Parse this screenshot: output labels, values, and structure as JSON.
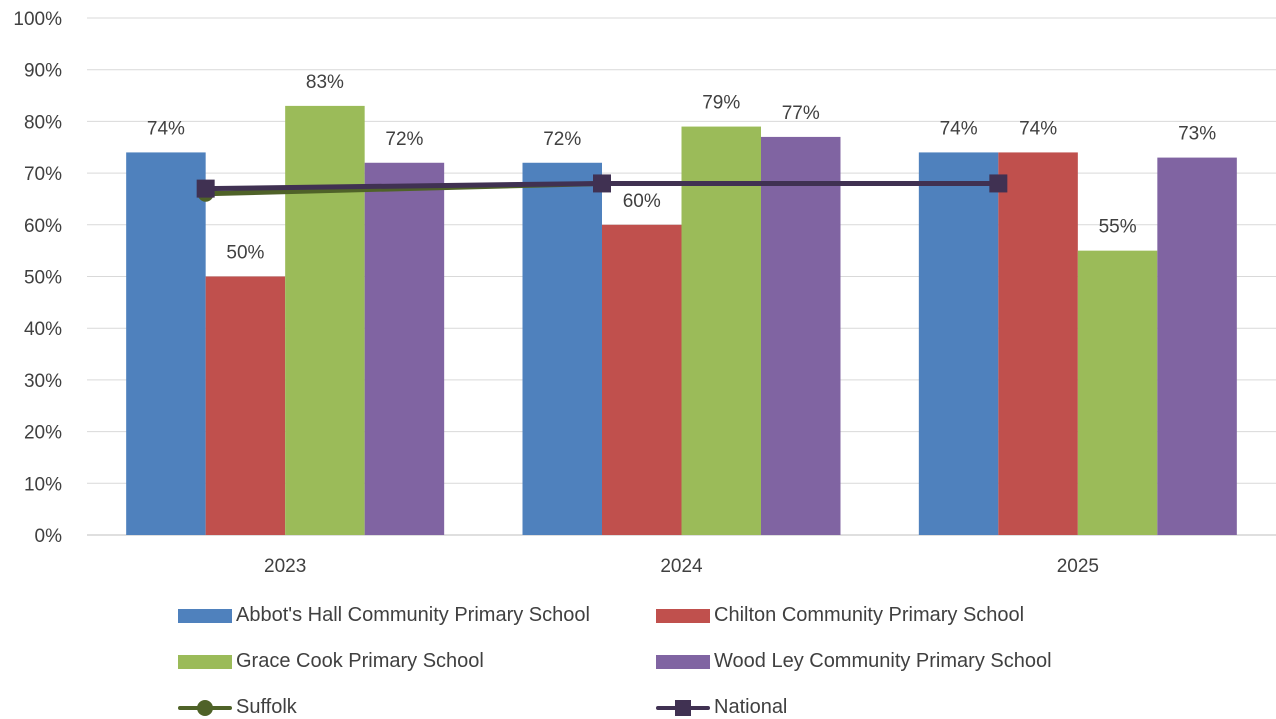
{
  "chart_data": {
    "type": "bar",
    "categories": [
      "2023",
      "2024",
      "2025"
    ],
    "ylim": [
      0,
      100
    ],
    "yticks": [
      "0%",
      "10%",
      "20%",
      "30%",
      "40%",
      "50%",
      "60%",
      "70%",
      "80%",
      "90%",
      "100%"
    ],
    "grid": true,
    "legend_position": "bottom",
    "series": [
      {
        "name": "Abbot's Hall Community Primary School",
        "values": [
          74,
          72,
          74
        ],
        "color": "#4F81BD",
        "type": "bar",
        "labels": [
          "74%",
          "72%",
          "74%"
        ]
      },
      {
        "name": "Chilton Community Primary School",
        "values": [
          50,
          60,
          74
        ],
        "color": "#C0504D",
        "type": "bar",
        "labels": [
          "50%",
          "60%",
          "74%"
        ]
      },
      {
        "name": "Grace Cook Primary School",
        "values": [
          83,
          79,
          55
        ],
        "color": "#9BBB59",
        "type": "bar",
        "labels": [
          "83%",
          "79%",
          "55%"
        ]
      },
      {
        "name": "Wood Ley Community Primary School",
        "values": [
          72,
          77,
          73
        ],
        "color": "#8064A2",
        "type": "bar",
        "labels": [
          "72%",
          "77%",
          "73%"
        ]
      },
      {
        "name": "Suffolk",
        "values": [
          66,
          68,
          68
        ],
        "color": "#4F6228",
        "type": "line",
        "marker": "circle"
      },
      {
        "name": "National",
        "values": [
          67,
          68,
          68
        ],
        "color": "#403152",
        "type": "line",
        "marker": "square"
      }
    ]
  }
}
